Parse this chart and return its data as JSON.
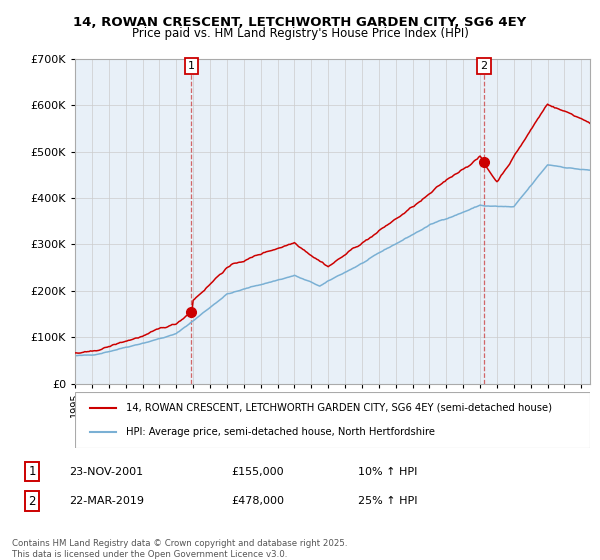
{
  "title1": "14, ROWAN CRESCENT, LETCHWORTH GARDEN CITY, SG6 4EY",
  "title2": "Price paid vs. HM Land Registry's House Price Index (HPI)",
  "sale1_date": "23-NOV-2001",
  "sale1_price": 155000,
  "sale1_hpi": "10% ↑ HPI",
  "sale2_date": "22-MAR-2019",
  "sale2_price": 478000,
  "sale2_hpi": "25% ↑ HPI",
  "legend_line1": "14, ROWAN CRESCENT, LETCHWORTH GARDEN CITY, SG6 4EY (semi-detached house)",
  "legend_line2": "HPI: Average price, semi-detached house, North Hertfordshire",
  "footnote": "Contains HM Land Registry data © Crown copyright and database right 2025.\nThis data is licensed under the Open Government Licence v3.0.",
  "red_color": "#cc0000",
  "blue_color": "#7ab0d4",
  "background_color": "#ffffff",
  "grid_color": "#cccccc",
  "chart_bg": "#e8f0f8"
}
